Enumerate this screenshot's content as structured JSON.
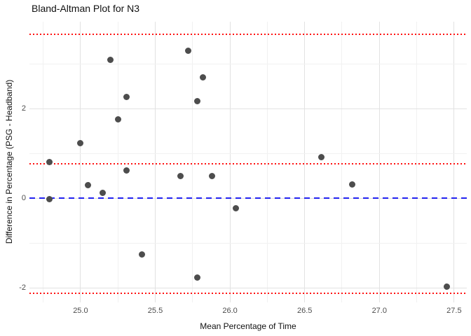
{
  "chart_data": {
    "type": "scatter",
    "title": "Bland-Altman Plot for N3",
    "xlabel": "Mean Percentage of Time",
    "ylabel": "Difference in Percentage (PSG - Headband)",
    "xlim": [
      24.658,
      27.585
    ],
    "ylim": [
      -2.328,
      3.938
    ],
    "grid": true,
    "legend": "none",
    "x_major_ticks": [
      25.0,
      25.5,
      26.0,
      26.5,
      27.0,
      27.5
    ],
    "x_tick_labels": [
      "25.0",
      "25.5",
      "26.0",
      "26.5",
      "27.0",
      "27.5"
    ],
    "x_minor_ticks": [
      24.75,
      25.25,
      25.75,
      26.25,
      26.75,
      27.25
    ],
    "y_major_ticks": [
      -2,
      0,
      2
    ],
    "y_tick_labels": [
      "-2",
      "0",
      "2"
    ],
    "y_minor_ticks": [
      -1,
      1,
      3
    ],
    "points": [
      [
        24.79,
        0.8
      ],
      [
        24.79,
        -0.02
      ],
      [
        25.0,
        1.22
      ],
      [
        25.05,
        0.29
      ],
      [
        25.15,
        0.12
      ],
      [
        25.2,
        3.09
      ],
      [
        25.25,
        1.76
      ],
      [
        25.31,
        2.26
      ],
      [
        25.31,
        0.61
      ],
      [
        25.41,
        -1.26
      ],
      [
        25.67,
        0.5
      ],
      [
        25.72,
        3.29
      ],
      [
        25.78,
        2.17
      ],
      [
        25.78,
        -1.77
      ],
      [
        25.82,
        2.69
      ],
      [
        25.88,
        0.5
      ],
      [
        26.04,
        -0.22
      ],
      [
        26.61,
        0.91
      ],
      [
        26.82,
        0.31
      ],
      [
        27.45,
        -1.97
      ]
    ],
    "point_color": "#4d4d4d",
    "hlines": [
      {
        "name": "upper-loa-line",
        "y": 3.65,
        "style": "dotted",
        "color": "#ff1111"
      },
      {
        "name": "mean-bias-line",
        "y": 0.76,
        "style": "dotted",
        "color": "#ff1111"
      },
      {
        "name": "lower-loa-line",
        "y": -2.13,
        "style": "dotted",
        "color": "#ff1111"
      },
      {
        "name": "zero-line",
        "y": 0.0,
        "style": "dashed",
        "color": "#2222f0"
      }
    ]
  }
}
